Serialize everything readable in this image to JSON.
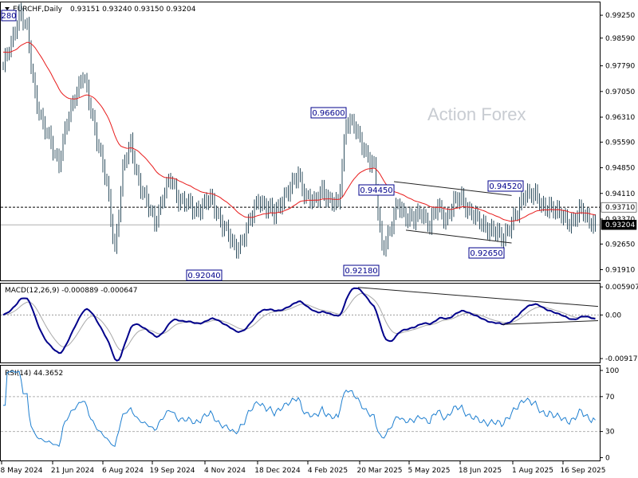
{
  "header": {
    "symbol": "EURCHF,Daily",
    "ohlc": "0.93151 0.93240 0.93150 0.93204"
  },
  "watermark": "Action Forex",
  "colors": {
    "price_bars": "#2f4f5f",
    "ma": "#e81c1c",
    "macd_main": "#00008b",
    "macd_signal": "#a8a8a8",
    "rsi": "#1e7fd0",
    "label_border": "#00008b",
    "current_price_bg": "#000000"
  },
  "chart_data": [
    {
      "type": "line",
      "name": "price",
      "ylim": [
        0.916,
        0.9962
      ],
      "ytick_labels": [
        "0.99250",
        "0.98590",
        "0.97790",
        "0.97050",
        "0.96310",
        "0.95590",
        "0.94850",
        "0.94110",
        "0.93370",
        "0.92650",
        "0.91910"
      ],
      "ytick_values": [
        0.9925,
        0.9859,
        0.9779,
        0.9705,
        0.9631,
        0.9559,
        0.9485,
        0.9411,
        0.9337,
        0.9265,
        0.9191
      ],
      "x_dates": [
        "8 May 2024",
        "21 Jun 2024",
        "6 Aug 2024",
        "19 Sep 2024",
        "4 Nov 2024",
        "18 Dec 2024",
        "4 Feb 2025",
        "20 Mar 2025",
        "5 May 2025",
        "18 Jun 2025",
        "1 Aug 2025",
        "16 Sep 2025"
      ],
      "anchors": [
        [
          0,
          0.977
        ],
        [
          4,
          0.985
        ],
        [
          8,
          0.993
        ],
        [
          12,
          0.988
        ],
        [
          16,
          0.97
        ],
        [
          20,
          0.96
        ],
        [
          24,
          0.956
        ],
        [
          28,
          0.95
        ],
        [
          32,
          0.961
        ],
        [
          36,
          0.97
        ],
        [
          40,
          0.975
        ],
        [
          44,
          0.965
        ],
        [
          48,
          0.955
        ],
        [
          52,
          0.943
        ],
        [
          56,
          0.925
        ],
        [
          60,
          0.948
        ],
        [
          64,
          0.955
        ],
        [
          68,
          0.945
        ],
        [
          72,
          0.938
        ],
        [
          76,
          0.933
        ],
        [
          80,
          0.94
        ],
        [
          84,
          0.945
        ],
        [
          88,
          0.94
        ],
        [
          92,
          0.938
        ],
        [
          96,
          0.936
        ],
        [
          100,
          0.938
        ],
        [
          104,
          0.939
        ],
        [
          108,
          0.935
        ],
        [
          112,
          0.93
        ],
        [
          116,
          0.925
        ],
        [
          120,
          0.928
        ],
        [
          124,
          0.933
        ],
        [
          128,
          0.94
        ],
        [
          132,
          0.937
        ],
        [
          136,
          0.935
        ],
        [
          140,
          0.94
        ],
        [
          144,
          0.942
        ],
        [
          148,
          0.947
        ],
        [
          152,
          0.94
        ],
        [
          156,
          0.938
        ],
        [
          160,
          0.943
        ],
        [
          164,
          0.938
        ],
        [
          168,
          0.938
        ],
        [
          172,
          0.962
        ],
        [
          176,
          0.96
        ],
        [
          180,
          0.956
        ],
        [
          184,
          0.95
        ],
        [
          186,
          0.948
        ],
        [
          188,
          0.936
        ],
        [
          190,
          0.926
        ],
        [
          194,
          0.93
        ],
        [
          198,
          0.938
        ],
        [
          202,
          0.935
        ],
        [
          206,
          0.933
        ],
        [
          210,
          0.936
        ],
        [
          214,
          0.932
        ],
        [
          218,
          0.937
        ],
        [
          222,
          0.934
        ],
        [
          226,
          0.938
        ],
        [
          230,
          0.94
        ],
        [
          234,
          0.936
        ],
        [
          238,
          0.933
        ],
        [
          242,
          0.932
        ],
        [
          246,
          0.93
        ],
        [
          250,
          0.928
        ],
        [
          254,
          0.932
        ],
        [
          258,
          0.935
        ],
        [
          262,
          0.942
        ],
        [
          266,
          0.941
        ],
        [
          270,
          0.937
        ],
        [
          274,
          0.938
        ],
        [
          278,
          0.935
        ],
        [
          282,
          0.934
        ],
        [
          286,
          0.933
        ],
        [
          290,
          0.936
        ],
        [
          294,
          0.934
        ],
        [
          297,
          0.932
        ]
      ],
      "annotations": [
        {
          "text": "280",
          "price": 0.9928
        },
        {
          "text": "0.92040",
          "price": 0.9204
        },
        {
          "text": "0.96600",
          "price": 0.966
        },
        {
          "text": "0.94450",
          "price": 0.9445
        },
        {
          "text": "0.92180",
          "price": 0.9218
        },
        {
          "text": "0.92650",
          "price": 0.9265
        },
        {
          "text": "0.94520",
          "price": 0.9452
        }
      ],
      "dashed_level": {
        "text": "0.93710",
        "price": 0.9371
      },
      "current_price": {
        "text": "0.93204",
        "price": 0.93204
      }
    },
    {
      "type": "line",
      "name": "MACD",
      "header": "MACD(12,26,9) -0.000889 -0.000647",
      "ytick_labels": [
        "0.005907",
        "0.00",
        "-0.009175"
      ],
      "ytick_values": [
        0.005907,
        0.0,
        -0.009175
      ],
      "ylim": [
        -0.01,
        0.0066
      ]
    },
    {
      "type": "line",
      "name": "RSI",
      "header": "RSI(14) 44.3652",
      "ytick_labels": [
        "100",
        "70",
        "30",
        "0"
      ],
      "ytick_values": [
        100,
        70,
        30,
        0
      ],
      "ylim": [
        0,
        100
      ],
      "levels": [
        70,
        30
      ]
    }
  ]
}
